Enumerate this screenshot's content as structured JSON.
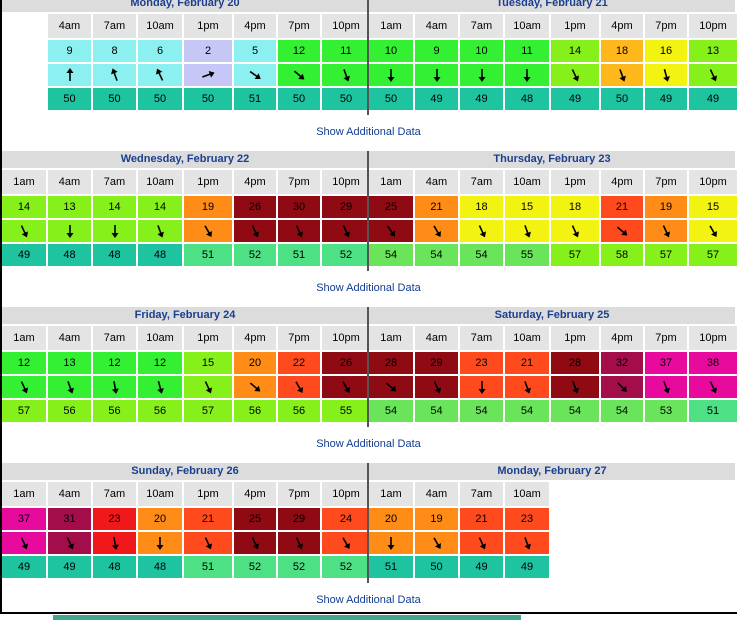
{
  "colors": {
    "lavender": "#c7c7f7",
    "cyan_light": "#8cf0f0",
    "cyan_mid": "#7fe8e0",
    "green_bright": "#33f033",
    "green": "#58f058",
    "lime": "#86f01b",
    "yellow": "#f3f311",
    "orange": "#ff8c17",
    "red_orange": "#ff4a1d",
    "red": "#f0181b",
    "dark_red": "#8f0a13",
    "magenta": "#e80a9d",
    "teal": "#1ec3a0",
    "mint": "#4ee084"
  },
  "sections": [
    {
      "show_label": "Show Additional Data",
      "days": [
        {
          "title": "Monday, February 20",
          "start_col": 1,
          "hours": [
            "4am",
            "7am",
            "10am",
            "1pm",
            "4pm",
            "7pm",
            "10pm"
          ],
          "speeds": [
            9,
            8,
            6,
            2,
            5,
            12,
            11
          ],
          "speed_colors": [
            "#8cf0f0",
            "#8cf0f0",
            "#8cf0f0",
            "#c7c7f7",
            "#8cf0f0",
            "#33f033",
            "#33f033"
          ],
          "directions": [
            0,
            -20,
            -25,
            70,
            125,
            130,
            160
          ],
          "arrow_colors": [
            "#8cf0f0",
            "#8cf0f0",
            "#8cf0f0",
            "#c7c7f7",
            "#8cf0f0",
            "#33f033",
            "#33f033"
          ],
          "temps": [
            50,
            50,
            50,
            50,
            51,
            50,
            50
          ],
          "temp_colors": [
            "#1ec3a0",
            "#1ec3a0",
            "#1ec3a0",
            "#1ec3a0",
            "#1ec3a0",
            "#1ec3a0",
            "#1ec3a0"
          ]
        },
        {
          "title": "Tuesday, February 21",
          "start_col": 0,
          "hours": [
            "1am",
            "4am",
            "7am",
            "10am",
            "1pm",
            "4pm",
            "7pm",
            "10pm"
          ],
          "speeds": [
            10,
            9,
            10,
            11,
            14,
            18,
            16,
            13
          ],
          "speed_colors": [
            "#33f033",
            "#33f033",
            "#33f033",
            "#33f033",
            "#86f01b",
            "#ffb81b",
            "#f3f311",
            "#86f01b"
          ],
          "directions": [
            180,
            180,
            180,
            180,
            155,
            160,
            165,
            155
          ],
          "arrow_colors": [
            "#33f033",
            "#33f033",
            "#33f033",
            "#33f033",
            "#86f01b",
            "#ffb81b",
            "#f3f311",
            "#86f01b"
          ],
          "temps": [
            50,
            49,
            49,
            48,
            49,
            50,
            49,
            49
          ],
          "temp_colors": [
            "#1ec3a0",
            "#1ec3a0",
            "#1ec3a0",
            "#1ec3a0",
            "#1ec3a0",
            "#1ec3a0",
            "#1ec3a0",
            "#1ec3a0"
          ]
        }
      ]
    },
    {
      "show_label": "Show Additional Data",
      "days": [
        {
          "title": "Wednesday, February 22",
          "start_col": 0,
          "hours": [
            "1am",
            "4am",
            "7am",
            "10am",
            "1pm",
            "4pm",
            "7pm",
            "10pm"
          ],
          "speeds": [
            14,
            13,
            14,
            14,
            19,
            26,
            30,
            29
          ],
          "speed_colors": [
            "#86f01b",
            "#86f01b",
            "#86f01b",
            "#86f01b",
            "#ff8c17",
            "#8f0a13",
            "#8f0a13",
            "#8f0a13"
          ],
          "directions": [
            155,
            180,
            180,
            160,
            150,
            155,
            155,
            155
          ],
          "arrow_colors": [
            "#86f01b",
            "#86f01b",
            "#86f01b",
            "#86f01b",
            "#ff8c17",
            "#8f0a13",
            "#8f0a13",
            "#8f0a13"
          ],
          "temps": [
            49,
            48,
            48,
            48,
            51,
            52,
            51,
            52
          ],
          "temp_colors": [
            "#1ec3a0",
            "#1ec3a0",
            "#1ec3a0",
            "#1ec3a0",
            "#4ee084",
            "#4ee084",
            "#4ee084",
            "#4ee084"
          ]
        },
        {
          "title": "Thursday, February 23",
          "start_col": 0,
          "hours": [
            "1am",
            "4am",
            "7am",
            "10am",
            "1pm",
            "4pm",
            "7pm",
            "10pm"
          ],
          "speeds": [
            25,
            21,
            18,
            15,
            18,
            21,
            19,
            15
          ],
          "speed_colors": [
            "#8f0a13",
            "#ff8c17",
            "#f3f311",
            "#f3f311",
            "#f3f311",
            "#ff4a1d",
            "#ff8c17",
            "#f3f311"
          ],
          "directions": [
            145,
            150,
            155,
            160,
            155,
            130,
            155,
            150
          ],
          "arrow_colors": [
            "#8f0a13",
            "#ff8c17",
            "#f3f311",
            "#f3f311",
            "#f3f311",
            "#ff4a1d",
            "#ff8c17",
            "#f3f311"
          ],
          "temps": [
            54,
            54,
            54,
            55,
            57,
            58,
            57,
            57
          ],
          "temp_colors": [
            "#6ae45a",
            "#6ae45a",
            "#6ae45a",
            "#6ae45a",
            "#86f01b",
            "#86f01b",
            "#86f01b",
            "#86f01b"
          ]
        }
      ]
    },
    {
      "show_label": "Show Additional Data",
      "days": [
        {
          "title": "Friday, February 24",
          "start_col": 0,
          "hours": [
            "1am",
            "4am",
            "7am",
            "10am",
            "1pm",
            "4pm",
            "7pm",
            "10pm"
          ],
          "speeds": [
            12,
            13,
            12,
            12,
            15,
            20,
            22,
            26
          ],
          "speed_colors": [
            "#33f033",
            "#33f033",
            "#33f033",
            "#33f033",
            "#86f01b",
            "#ff8c17",
            "#ff4a1d",
            "#8f0a13"
          ],
          "directions": [
            155,
            160,
            170,
            165,
            155,
            130,
            150,
            150
          ],
          "arrow_colors": [
            "#33f033",
            "#33f033",
            "#33f033",
            "#33f033",
            "#86f01b",
            "#ff8c17",
            "#ff4a1d",
            "#8f0a13"
          ],
          "temps": [
            57,
            56,
            56,
            56,
            57,
            56,
            56,
            55
          ],
          "temp_colors": [
            "#86f01b",
            "#86f01b",
            "#86f01b",
            "#86f01b",
            "#86f01b",
            "#86f01b",
            "#86f01b",
            "#86f01b"
          ]
        },
        {
          "title": "Saturday, February 25",
          "start_col": 0,
          "hours": [
            "1am",
            "4am",
            "7am",
            "10am",
            "1pm",
            "4pm",
            "7pm",
            "10pm"
          ],
          "speeds": [
            28,
            29,
            23,
            21,
            28,
            32,
            37,
            38
          ],
          "speed_colors": [
            "#8f0a13",
            "#8f0a13",
            "#ff4a1d",
            "#ff4a1d",
            "#8f0a13",
            "#a30d4a",
            "#e80a9d",
            "#e80a9d"
          ],
          "directions": [
            130,
            155,
            180,
            160,
            160,
            135,
            160,
            155
          ],
          "arrow_colors": [
            "#8f0a13",
            "#8f0a13",
            "#ff4a1d",
            "#ff4a1d",
            "#8f0a13",
            "#a30d4a",
            "#e80a9d",
            "#e80a9d"
          ],
          "temps": [
            54,
            54,
            54,
            54,
            54,
            54,
            53,
            51
          ],
          "temp_colors": [
            "#6ae45a",
            "#6ae45a",
            "#6ae45a",
            "#6ae45a",
            "#6ae45a",
            "#6ae45a",
            "#6ae45a",
            "#4ee084"
          ]
        }
      ]
    },
    {
      "show_label": "Show Additional Data",
      "days": [
        {
          "title": "Sunday, February 26",
          "start_col": 0,
          "hours": [
            "1am",
            "4am",
            "7am",
            "10am",
            "1pm",
            "4pm",
            "7pm",
            "10pm"
          ],
          "speeds": [
            37,
            31,
            23,
            20,
            21,
            25,
            29,
            24
          ],
          "speed_colors": [
            "#e80a9d",
            "#a30d4a",
            "#f0181b",
            "#ff8c17",
            "#ff4a1d",
            "#8f0a13",
            "#8f0a13",
            "#ff4a1d"
          ],
          "directions": [
            155,
            155,
            170,
            180,
            155,
            155,
            155,
            150
          ],
          "arrow_colors": [
            "#e80a9d",
            "#a30d4a",
            "#f0181b",
            "#ff8c17",
            "#ff4a1d",
            "#8f0a13",
            "#8f0a13",
            "#ff4a1d"
          ],
          "temps": [
            49,
            49,
            48,
            48,
            51,
            52,
            52,
            52
          ],
          "temp_colors": [
            "#1ec3a0",
            "#1ec3a0",
            "#1ec3a0",
            "#1ec3a0",
            "#4ee084",
            "#4ee084",
            "#4ee084",
            "#4ee084"
          ]
        },
        {
          "title": "Monday, February 27",
          "start_col": 0,
          "hours": [
            "1am",
            "4am",
            "7am",
            "10am"
          ],
          "speeds": [
            20,
            19,
            21,
            23
          ],
          "speed_colors": [
            "#ff8c17",
            "#ff8c17",
            "#ff4a1d",
            "#ff4a1d"
          ],
          "directions": [
            180,
            150,
            155,
            160
          ],
          "arrow_colors": [
            "#ff8c17",
            "#ff8c17",
            "#ff4a1d",
            "#ff4a1d"
          ],
          "temps": [
            51,
            50,
            49,
            49
          ],
          "temp_colors": [
            "#1ec3a0",
            "#1ec3a0",
            "#1ec3a0",
            "#1ec3a0"
          ]
        }
      ]
    }
  ]
}
